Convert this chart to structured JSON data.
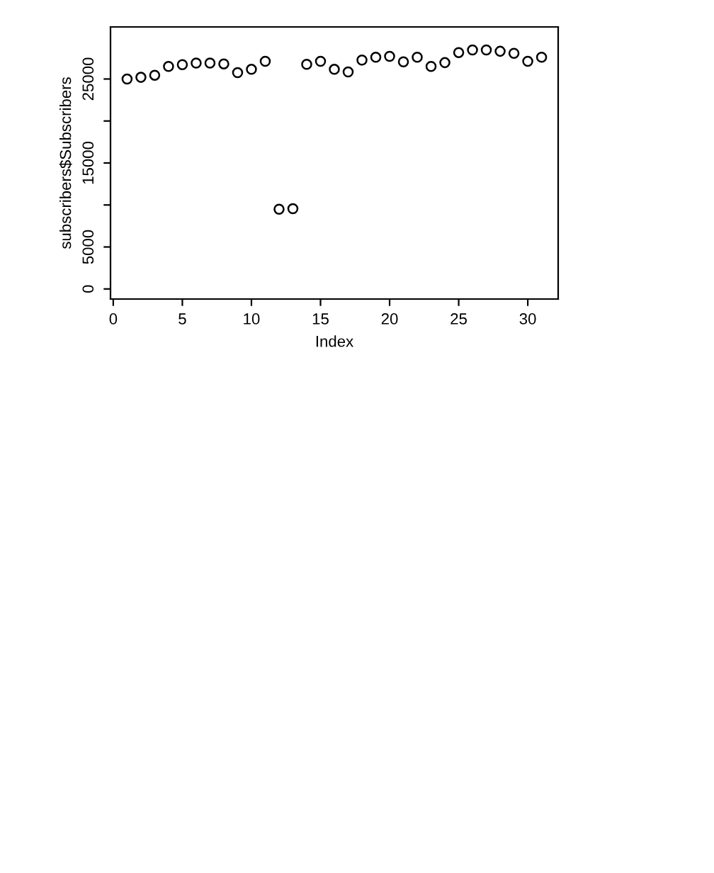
{
  "chart_data": {
    "type": "scatter",
    "xlabel": "Index",
    "ylabel": "subscribers$Subscribers",
    "x": [
      1,
      2,
      3,
      4,
      5,
      6,
      7,
      8,
      9,
      10,
      11,
      12,
      13,
      14,
      15,
      16,
      17,
      18,
      19,
      20,
      21,
      22,
      23,
      24,
      25,
      26,
      27,
      28,
      29,
      30,
      31
    ],
    "series": [
      {
        "color": "#000000",
        "values": [
          25000,
          25200,
          25450,
          26500,
          26700,
          26900,
          26900,
          26800,
          25750,
          26150,
          27100,
          9500,
          9550,
          26750,
          27100,
          26150,
          25850,
          27250,
          27600,
          27700,
          27050,
          27600,
          26500,
          26950,
          28150,
          28450,
          28450,
          28300,
          28050,
          27100,
          27600
        ]
      }
    ],
    "xlim": [
      -0.2,
      32.2
    ],
    "ylim": [
      -1200,
      31200
    ],
    "xticks": [
      0,
      5,
      10,
      15,
      20,
      25,
      30
    ],
    "yticks": [
      0,
      5000,
      {
        "value": 10000,
        "label": null
      },
      15000,
      {
        "value": 20000,
        "label": null
      },
      25000
    ],
    "marker": "circle",
    "grid": false,
    "legend": false
  }
}
